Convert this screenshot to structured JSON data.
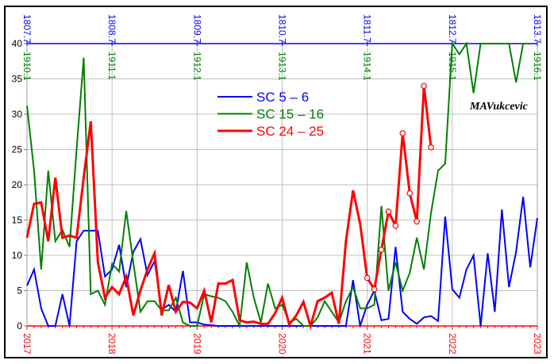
{
  "chart_data": {
    "type": "line",
    "x_start": "2017-01",
    "x_step": "month",
    "xlim": [
      2017,
      2023
    ],
    "ylim": [
      0,
      40
    ],
    "yticks": [
      "0",
      "5",
      "10",
      "15",
      "20",
      "25",
      "30",
      "35",
      "40"
    ],
    "bottom_ticks": [
      "2017",
      "2018",
      "2019",
      "2020",
      "2021",
      "2022",
      "2023"
    ],
    "top_ticks_blue": [
      "1807.7",
      "1808.7",
      "1809.7",
      "1810.7",
      "1811.7",
      "1812.7",
      "1813.7"
    ],
    "top_ticks_green": [
      "1910.1",
      "1911.1",
      "1912.1",
      "1913.1",
      "1914.1",
      "1915.1",
      "1916.1"
    ],
    "grid": true,
    "legend_position": "top-center",
    "watermark": "MAVukcevic",
    "series": [
      {
        "name": "SC 5 – 6",
        "color": "#0000ff",
        "values": [
          5.7,
          8,
          2.5,
          0,
          0,
          4.5,
          0,
          12,
          13.5,
          13.5,
          13.5,
          7,
          8,
          11.5,
          5.5,
          10.5,
          12.3,
          7.2,
          9.2,
          2.3,
          3,
          2,
          7.8,
          0.5,
          0.5,
          0.2,
          0.1,
          0,
          0,
          0,
          0,
          0,
          0,
          0,
          0,
          0,
          0,
          0,
          0,
          0,
          0,
          0,
          0,
          0,
          0,
          0,
          6.5,
          0,
          3,
          5,
          0.8,
          1,
          11.2,
          2,
          1,
          0.3,
          1.2,
          1.4,
          0.7,
          15.5,
          5.2,
          4,
          8,
          10,
          0,
          10.3,
          2,
          16.5,
          5.5,
          10.5,
          18.3,
          8.3,
          15.3
        ]
      },
      {
        "name": "SC 15 – 16",
        "color": "#008000",
        "values": [
          31.2,
          22,
          8,
          22,
          12,
          13.6,
          11.2,
          25,
          38,
          4.5,
          5,
          3,
          8.8,
          7.7,
          16.3,
          9,
          2,
          3.5,
          3.5,
          2.2,
          2.2,
          4,
          0.5,
          0,
          0,
          4.5,
          4.2,
          4,
          3.5,
          2,
          0,
          9,
          4,
          0.5,
          6,
          2.5,
          3,
          0.5,
          1,
          0,
          0,
          1.2,
          3.5,
          2,
          0.5,
          3.5,
          5.5,
          2.5,
          2.5,
          3,
          17,
          5,
          9,
          5,
          7.5,
          12.5,
          8,
          16,
          22,
          23,
          42,
          38.5,
          42,
          33,
          42,
          42,
          42,
          42,
          42,
          34.5,
          42,
          42
        ]
      },
      {
        "name": "SC 24 – 25",
        "color": "#ff0000",
        "marked_from_index": 48,
        "values": [
          12.5,
          17.3,
          17.5,
          12,
          21,
          12.5,
          12.8,
          12.5,
          21,
          29,
          9,
          4,
          5.5,
          4.5,
          7,
          1.5,
          5,
          8,
          10.3,
          1.5,
          5.8,
          2,
          3.4,
          3.3,
          2.5,
          5,
          0.5,
          6,
          6,
          6.5,
          0.8,
          0.5,
          0.6,
          0.3,
          0.3,
          1.8,
          4,
          0.2,
          1.5,
          3.4,
          0,
          3.5,
          4,
          4.7,
          0.3,
          12,
          19.2,
          14.5,
          6.8,
          5.2,
          10.8,
          16.2,
          14.2,
          27.3,
          18.8,
          14.8,
          34,
          25.3
        ]
      }
    ]
  }
}
